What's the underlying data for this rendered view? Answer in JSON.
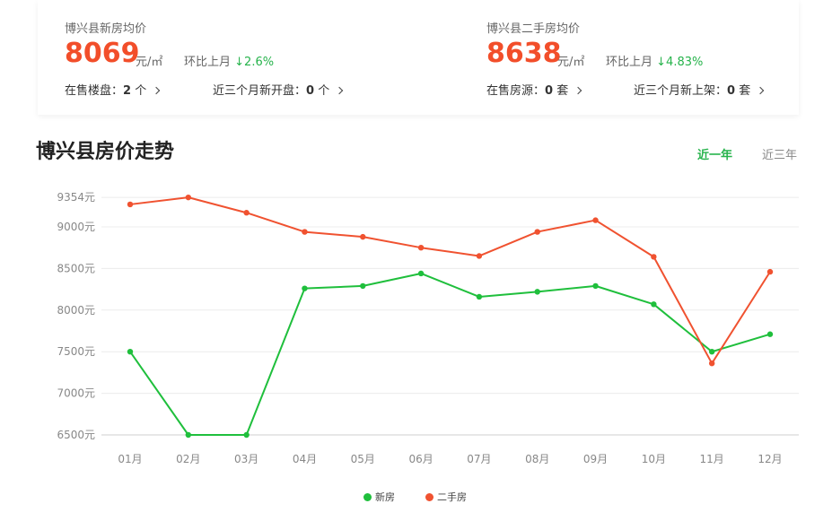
{
  "new_house": {
    "title": "博兴县新房均价",
    "price": "8069",
    "unit": "元/㎡",
    "mom_label": "环比上月",
    "mom_change": "↓2.6%",
    "stat1_label": "在售楼盘：",
    "stat1_value": "2",
    "stat1_suffix": " 个",
    "stat2_label": "近三个月新开盘：",
    "stat2_value": "0",
    "stat2_suffix": " 个"
  },
  "second_house": {
    "title": "博兴县二手房均价",
    "price": "8638",
    "unit": "元/㎡",
    "mom_label": "环比上月",
    "mom_change": "↓4.83%",
    "stat1_label": "在售房源：",
    "stat1_value": "0",
    "stat1_suffix": " 套",
    "stat2_label": "近三个月新上架：",
    "stat2_value": "0",
    "stat2_suffix": " 套"
  },
  "section_title": "博兴县房价走势",
  "tabs": {
    "active": "近一年",
    "inactive": "近三年"
  },
  "colors": {
    "new": "#1fbf3c",
    "second": "#f05230",
    "down": "#26b34b",
    "price": "#f24e2a"
  },
  "chart_data": {
    "type": "line",
    "categories": [
      "01月",
      "02月",
      "03月",
      "04月",
      "05月",
      "06月",
      "07月",
      "08月",
      "09月",
      "10月",
      "11月",
      "12月"
    ],
    "y_ticks": [
      "9354元",
      "9000元",
      "8500元",
      "8000元",
      "7500元",
      "7000元",
      "6500元"
    ],
    "y_tick_values": [
      9354,
      9000,
      8500,
      8000,
      7500,
      7000,
      6500
    ],
    "ylim": [
      6500,
      9354
    ],
    "grid": true,
    "legend": "bottom-center",
    "series": [
      {
        "name": "新房",
        "color": "#1fbf3c",
        "values": [
          7500,
          6500,
          6500,
          8260,
          8290,
          8440,
          8160,
          8220,
          8290,
          8070,
          7500,
          7710
        ]
      },
      {
        "name": "二手房",
        "color": "#f05230",
        "values": [
          9270,
          9354,
          9170,
          8940,
          8880,
          8750,
          8650,
          8940,
          9080,
          8640,
          7360,
          8460
        ]
      }
    ]
  }
}
